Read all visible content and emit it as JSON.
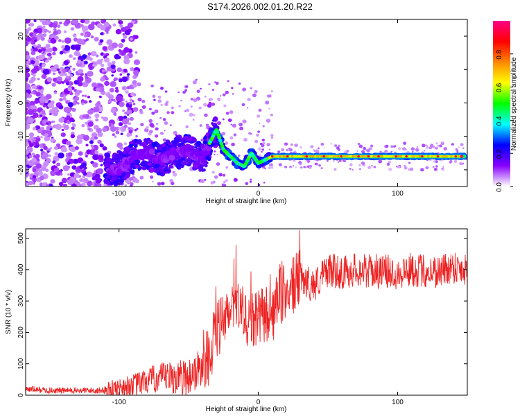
{
  "title": "S174.2026.002.01.20.R22",
  "chart_data": [
    {
      "type": "heatmap",
      "xlabel": "Height of straight line (km)",
      "ylabel": "Frequency (Hz)",
      "xlim": [
        -167,
        150
      ],
      "ylim": [
        -25,
        25
      ],
      "xticks": [
        -100,
        0,
        100
      ],
      "yticks": [
        -20,
        -10,
        0,
        10,
        20
      ],
      "colorbar": {
        "label": "Normalized spectral amplitude",
        "range": [
          0,
          1
        ],
        "ticks": [
          0.0,
          0.2,
          0.4,
          0.6,
          0.8
        ],
        "colors": [
          "#ffffff",
          "#8800ff",
          "#0000ff",
          "#00ffff",
          "#00ff00",
          "#ffff00",
          "#ff8800",
          "#ff0000",
          "#ff0088"
        ]
      },
      "ridge": {
        "note": "dominant frequency trace (Hz) vs height (km)",
        "x": [
          -100,
          -90,
          -80,
          -70,
          -60,
          -50,
          -40,
          -35,
          -30,
          -25,
          -20,
          -15,
          -10,
          -5,
          0,
          5,
          10,
          20,
          40,
          60,
          80,
          100,
          120,
          140,
          147
        ],
        "y": [
          -20,
          -16,
          -15,
          -17,
          -15,
          -14,
          -17,
          -12,
          -8,
          -14,
          -16,
          -18,
          -19,
          -15,
          -18,
          -17,
          -16,
          -16,
          -16,
          -16,
          -16,
          -16,
          -16,
          -16,
          -16
        ]
      }
    },
    {
      "type": "line",
      "xlabel": "Height of straight line (km)",
      "ylabel": "SNR (10 * v/v)",
      "xlim": [
        -167,
        150
      ],
      "ylim": [
        0,
        530
      ],
      "xticks": [
        -100,
        0,
        100
      ],
      "yticks": [
        0,
        100,
        200,
        300,
        400,
        500
      ],
      "series": [
        {
          "name": "SNR",
          "color": "#ee2222",
          "x": [
            -167,
            -150,
            -130,
            -110,
            -100,
            -90,
            -80,
            -70,
            -60,
            -50,
            -40,
            -35,
            -30,
            -25,
            -20,
            -15,
            -10,
            -5,
            0,
            5,
            10,
            15,
            20,
            25,
            30,
            40,
            50,
            60,
            70,
            80,
            90,
            100,
            110,
            120,
            130,
            140,
            150
          ],
          "y": [
            20,
            15,
            15,
            15,
            25,
            30,
            45,
            55,
            55,
            60,
            90,
            130,
            210,
            230,
            260,
            280,
            250,
            230,
            240,
            260,
            250,
            310,
            330,
            350,
            370,
            350,
            400,
            390,
            400,
            395,
            395,
            390,
            400,
            395,
            395,
            410,
            400
          ]
        }
      ]
    }
  ]
}
